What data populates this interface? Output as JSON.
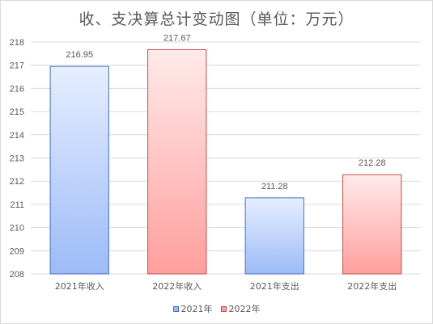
{
  "chart_data": {
    "type": "bar",
    "title": "收、支决算总计变动图（单位：万元）",
    "categories": [
      "2021年收入",
      "2022年收入",
      "2021年支出",
      "2022年支出"
    ],
    "values": [
      216.95,
      217.67,
      211.28,
      212.28
    ],
    "data_labels": [
      "216.95",
      "217.67",
      "211.28",
      "212.28"
    ],
    "bar_series": [
      "2021年",
      "2022年",
      "2021年",
      "2022年"
    ],
    "series": [
      {
        "name": "2021年",
        "color": "#4472c4",
        "fill_top": "#e6eeff",
        "fill_bottom": "#9dbbf7"
      },
      {
        "name": "2022年",
        "color": "#c0504d",
        "fill_top": "#ffeaea",
        "fill_bottom": "#ff9f9d"
      }
    ],
    "ylim": [
      208,
      218
    ],
    "yticks": [
      208,
      209,
      210,
      211,
      212,
      213,
      214,
      215,
      216,
      217,
      218
    ],
    "grid": true,
    "legend": "bottom"
  }
}
